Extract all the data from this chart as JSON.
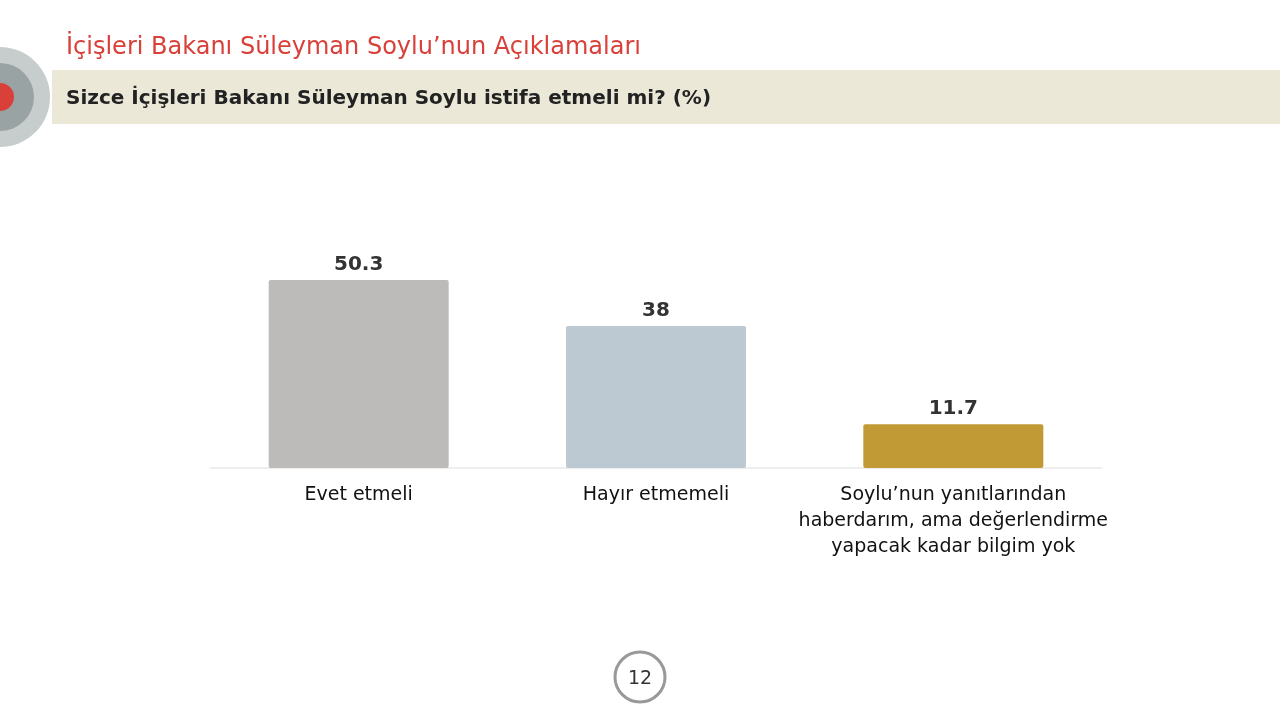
{
  "chart_data": {
    "type": "bar",
    "title": "İçişleri Bakanı Süleyman Soylu’nun Açıklamaları",
    "subtitle": "Sizce İçişleri Bakanı Süleyman Soylu istifa etmeli mi?  (%)",
    "categories": [
      "Evet etmeli",
      "Hayır etmemeli",
      "Soylu’nun yanıtlarından haberdarım, ama değerlendirme yapacak kadar bilgim yok"
    ],
    "values": [
      50.3,
      38,
      11.7
    ],
    "colors": [
      "#bcbbba",
      "#bcc8d2",
      "#c19a35"
    ],
    "data_labels": true,
    "annotations": [
      "12"
    ]
  }
}
